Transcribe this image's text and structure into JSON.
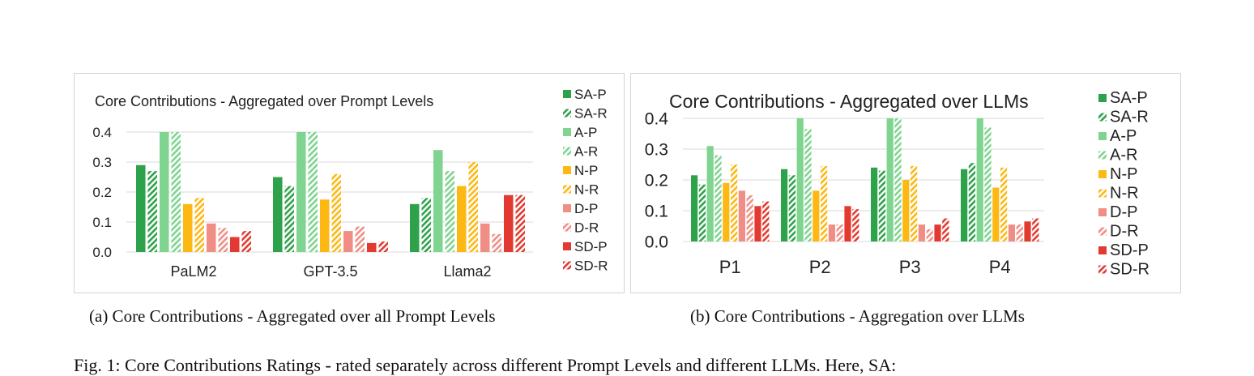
{
  "legend_labels": [
    "SA-P",
    "SA-R",
    "A-P",
    "A-R",
    "N-P",
    "N-R",
    "D-P",
    "D-R",
    "SD-P",
    "SD-R"
  ],
  "series_style": {
    "colors": [
      "#2ea24a",
      "#2ea24a",
      "#7fd48f",
      "#7fd48f",
      "#fdb813",
      "#fdb813",
      "#f08e86",
      "#f08e86",
      "#e23a30",
      "#e23a30"
    ],
    "hatched": [
      false,
      true,
      false,
      true,
      false,
      true,
      false,
      true,
      false,
      true
    ]
  },
  "chart_data": [
    {
      "type": "bar",
      "title": "Core Contributions - Aggregated over Prompt Levels",
      "categories": [
        "PaLM2",
        "GPT-3.5",
        "Llama2"
      ],
      "ylim": [
        0,
        0.4
      ],
      "yticks": [
        "0.0",
        "0.1",
        "0.2",
        "0.3",
        "0.4"
      ],
      "grid": true,
      "legend_position": "right",
      "series": [
        {
          "name": "SA-P",
          "values": [
            0.29,
            0.25,
            0.16
          ]
        },
        {
          "name": "SA-R",
          "values": [
            0.27,
            0.22,
            0.18
          ]
        },
        {
          "name": "A-P",
          "values": [
            0.4,
            0.4,
            0.34
          ]
        },
        {
          "name": "A-R",
          "values": [
            0.4,
            0.4,
            0.27
          ]
        },
        {
          "name": "N-P",
          "values": [
            0.16,
            0.175,
            0.22
          ]
        },
        {
          "name": "N-R",
          "values": [
            0.18,
            0.26,
            0.3
          ]
        },
        {
          "name": "D-P",
          "values": [
            0.095,
            0.07,
            0.095
          ]
        },
        {
          "name": "D-R",
          "values": [
            0.08,
            0.085,
            0.06
          ]
        },
        {
          "name": "SD-P",
          "values": [
            0.05,
            0.03,
            0.19
          ]
        },
        {
          "name": "SD-R",
          "values": [
            0.07,
            0.035,
            0.19
          ]
        }
      ]
    },
    {
      "type": "bar",
      "title": "Core Contributions - Aggregated over LLMs",
      "categories": [
        "P1",
        "P2",
        "P3",
        "P4"
      ],
      "ylim": [
        0,
        0.4
      ],
      "yticks": [
        "0.0",
        "0.1",
        "0.2",
        "0.3",
        "0.4"
      ],
      "grid": true,
      "legend_position": "right",
      "series": [
        {
          "name": "SA-P",
          "values": [
            0.215,
            0.235,
            0.24,
            0.235
          ]
        },
        {
          "name": "SA-R",
          "values": [
            0.185,
            0.215,
            0.23,
            0.255
          ]
        },
        {
          "name": "A-P",
          "values": [
            0.31,
            0.4,
            0.4,
            0.4
          ]
        },
        {
          "name": "A-R",
          "values": [
            0.28,
            0.365,
            0.4,
            0.37
          ]
        },
        {
          "name": "N-P",
          "values": [
            0.19,
            0.165,
            0.2,
            0.175
          ]
        },
        {
          "name": "N-R",
          "values": [
            0.25,
            0.245,
            0.245,
            0.24
          ]
        },
        {
          "name": "D-P",
          "values": [
            0.165,
            0.055,
            0.055,
            0.055
          ]
        },
        {
          "name": "D-R",
          "values": [
            0.15,
            0.055,
            0.04,
            0.055
          ]
        },
        {
          "name": "SD-P",
          "values": [
            0.115,
            0.115,
            0.055,
            0.065
          ]
        },
        {
          "name": "SD-R",
          "values": [
            0.13,
            0.105,
            0.075,
            0.075
          ]
        }
      ]
    }
  ],
  "captions": {
    "a": "(a) Core Contributions - Aggregated over all Prompt Levels",
    "b": "(b) Core Contributions - Aggregation over LLMs"
  },
  "figure_caption": "Fig. 1: Core Contributions Ratings - rated separately across different Prompt Levels and different LLMs. Here, SA:"
}
